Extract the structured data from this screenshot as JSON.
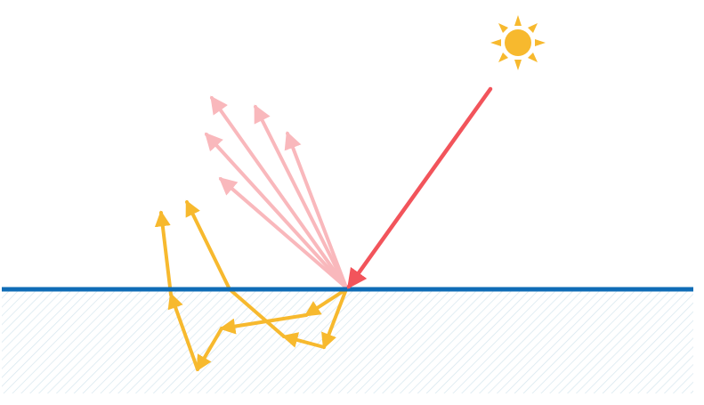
{
  "colors": {
    "background": "#ffffff",
    "surface_line": "#0f6cb6",
    "medium_hatch": "#d6e6ee",
    "incident_ray": "#f2545b",
    "reflected_rays": "#f9b8bc",
    "scattered_path": "#f7b92e",
    "sun": "#f7b92e"
  },
  "icons": {
    "sun": "sun-icon"
  }
}
